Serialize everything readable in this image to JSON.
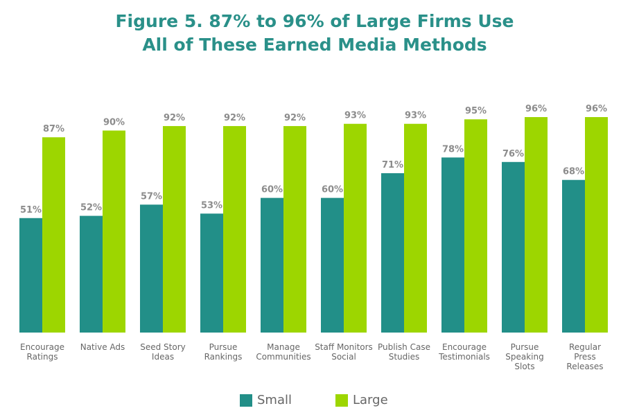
{
  "chart_data": {
    "type": "bar",
    "title": "Figure 5. 87% to 96% of Large Firms Use All of These Earned Media Methods",
    "categories": [
      "Encourage\nRatings",
      "Native Ads",
      "Seed Story\nIdeas",
      "Pursue\nRankings",
      "Manage\nCommunities",
      "Staff Monitors\nSocial",
      "Publish Case\nStudies",
      "Encourage\nTestimonials",
      "Pursue\nSpeaking\nSlots",
      "Regular\nPress\nReleases"
    ],
    "series": [
      {
        "name": "Small",
        "color": "#228f88",
        "values": [
          51,
          52,
          57,
          53,
          60,
          60,
          71,
          78,
          76,
          68
        ],
        "value_labels": [
          "51%",
          "52%",
          "57%",
          "53%",
          "60%",
          "60%",
          "71%",
          "78%",
          "76%",
          "68%"
        ]
      },
      {
        "name": "Large",
        "color": "#9dd600",
        "values": [
          87,
          90,
          92,
          92,
          92,
          93,
          93,
          95,
          96,
          96
        ],
        "value_labels": [
          "87%",
          "90%",
          "92%",
          "92%",
          "92%",
          "93%",
          "93%",
          "95%",
          "96%",
          "96%"
        ]
      }
    ]
  }
}
